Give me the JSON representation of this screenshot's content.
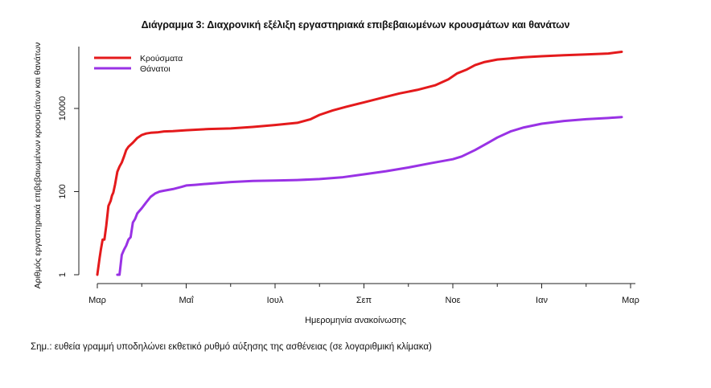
{
  "chart_data": {
    "type": "line",
    "title": "Διάγραμμα 3: Διαχρονική εξέλιξη εργαστηριακά επιβεβαιωμένων κρουσμάτων και θανάτων",
    "xlabel": "Ημερομηνία ανακοίνωσης",
    "ylabel": "Αριθμός εργαστηριακά επιβεβαιωμένων κρουσμάτων και θανάτων",
    "y_scale": "log10",
    "ylim": [
      1,
      200000
    ],
    "xlim": [
      0,
      12
    ],
    "x_units": "months since start of March",
    "x_ticks": [
      {
        "value": 0,
        "label": "Μαρ"
      },
      {
        "value": 2,
        "label": "Μαΐ"
      },
      {
        "value": 4,
        "label": "Ιουλ"
      },
      {
        "value": 6,
        "label": "Σεπ"
      },
      {
        "value": 8,
        "label": "Νοε"
      },
      {
        "value": 10,
        "label": "Ιαν"
      },
      {
        "value": 12,
        "label": "Μαρ"
      }
    ],
    "y_ticks": [
      {
        "value": 1,
        "label": "1"
      },
      {
        "value": 100,
        "label": "100"
      },
      {
        "value": 10000,
        "label": "10000"
      }
    ],
    "legend_position": "top-left",
    "series": [
      {
        "name": "Κρούσματα",
        "color": "#e41a1c",
        "x": [
          0.0,
          0.05,
          0.08,
          0.12,
          0.16,
          0.2,
          0.25,
          0.3,
          0.33,
          0.36,
          0.4,
          0.45,
          0.5,
          0.55,
          0.6,
          0.65,
          0.7,
          0.8,
          0.9,
          1.0,
          1.1,
          1.2,
          1.35,
          1.5,
          1.7,
          2.0,
          2.5,
          3.0,
          3.5,
          4.0,
          4.5,
          4.8,
          5.0,
          5.3,
          5.6,
          6.0,
          6.4,
          6.8,
          7.2,
          7.6,
          7.9,
          8.1,
          8.3,
          8.5,
          8.7,
          9.0,
          9.3,
          9.6,
          10.0,
          10.5,
          11.0,
          11.5,
          11.8
        ],
        "y": [
          1,
          2.5,
          4,
          7,
          7,
          15,
          45,
          60,
          80,
          95,
          150,
          300,
          400,
          500,
          700,
          1000,
          1200,
          1500,
          1950,
          2300,
          2500,
          2600,
          2650,
          2800,
          2850,
          3000,
          3200,
          3300,
          3600,
          4000,
          4500,
          5500,
          7000,
          9000,
          11000,
          14000,
          18000,
          23000,
          28000,
          36000,
          50000,
          70000,
          85000,
          110000,
          130000,
          150000,
          160000,
          170000,
          180000,
          190000,
          200000,
          210000,
          230000
        ]
      },
      {
        "name": "Θάνατοι",
        "color": "#9932e5",
        "x": [
          0.45,
          0.5,
          0.55,
          0.6,
          0.65,
          0.7,
          0.75,
          0.8,
          0.85,
          0.9,
          1.0,
          1.1,
          1.2,
          1.3,
          1.4,
          1.5,
          1.7,
          1.9,
          2.0,
          2.2,
          2.5,
          3.0,
          3.5,
          4.0,
          4.5,
          5.0,
          5.5,
          6.0,
          6.5,
          7.0,
          7.5,
          8.0,
          8.2,
          8.5,
          8.8,
          9.0,
          9.3,
          9.6,
          10.0,
          10.5,
          11.0,
          11.5,
          11.8
        ],
        "y": [
          1,
          1,
          3,
          4,
          5,
          7,
          8,
          18,
          22,
          30,
          40,
          55,
          75,
          90,
          100,
          105,
          115,
          130,
          140,
          145,
          155,
          170,
          180,
          185,
          190,
          200,
          220,
          260,
          310,
          380,
          480,
          600,
          700,
          1000,
          1500,
          2000,
          2800,
          3500,
          4300,
          5000,
          5500,
          5900,
          6200
        ]
      }
    ]
  },
  "note": "Σημ.: ευθεία γραμμή υποδηλώνει εκθετικό ρυθμό αύξησης της ασθένειας (σε λογαριθμική κλίμακα)"
}
